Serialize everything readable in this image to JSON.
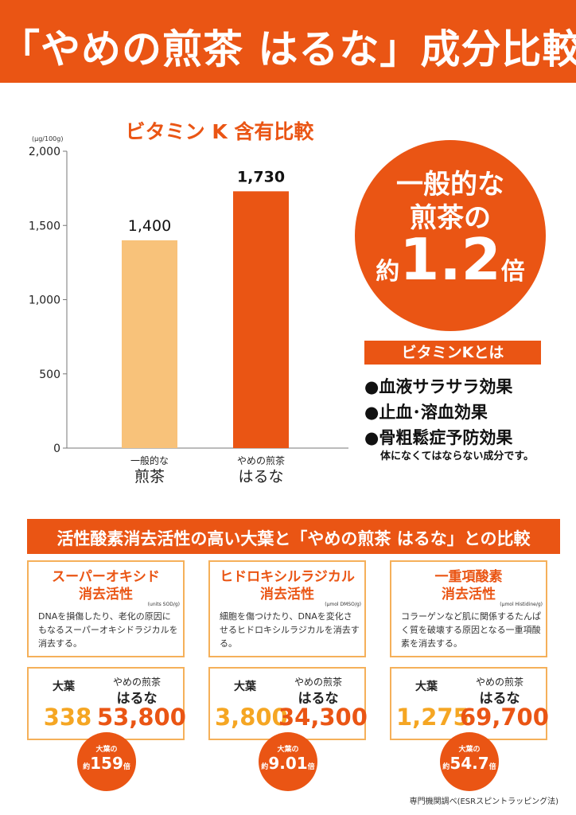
{
  "header": {
    "title": "「やめの煎茶 はるな」成分比較"
  },
  "chart_data": {
    "type": "bar",
    "title": "ビタミン K 含有比較",
    "unit": "(μg/100g)",
    "categories": [
      "一般的な 煎茶",
      "やめの煎茶 はるな"
    ],
    "category_small": [
      "一般的な",
      "やめの煎茶"
    ],
    "category_large": [
      "煎茶",
      "はるな"
    ],
    "values": [
      1400,
      1730
    ],
    "value_labels": [
      "1,400",
      "1,730"
    ],
    "colors": [
      "#f8c27a",
      "#ea5514"
    ],
    "ylim": [
      0,
      2000
    ],
    "ticks": [
      0,
      500,
      1000,
      1500,
      2000
    ],
    "tick_labels": [
      "0",
      "500",
      "1,000",
      "1,500",
      "2,000"
    ],
    "grid": false
  },
  "bubble": {
    "line1": "一般的な",
    "line2": "煎茶の",
    "prefix": "約",
    "ratio": "1.2",
    "suffix": "倍"
  },
  "vitamin_k": {
    "label": "ビタミンKとは",
    "benefits": [
      "●血液サラサラ効果",
      "●止血･溶血効果",
      "●骨粗鬆症予防効果"
    ],
    "note": "体になくてはならない成分です。"
  },
  "section": {
    "title": "活性酸素消去活性の高い大葉と「やめの煎茶 はるな」との比較"
  },
  "comparisons": [
    {
      "name1": "スーパーオキシド",
      "name2": "消去活性",
      "unit": "(units SOD/g)",
      "desc": "DNAを損傷したり、老化の原因にもなるスーパーオキシドラジカルを消去する。",
      "label_left": "大葉",
      "label_right_small": "やめの煎茶",
      "label_right_large": "はるな",
      "value_left": "338",
      "value_right": "53,800",
      "ratio_top": "大葉の",
      "ratio_prefix": "約",
      "ratio_value": "159",
      "ratio_suffix": "倍"
    },
    {
      "name1": "ヒドロキシルラジカル",
      "name2": "消去活性",
      "unit": "(μmol DMSO/g)",
      "desc": "細胞を傷つけたり、DNAを変化させるヒドロキシルラジカルを消去する。",
      "label_left": "大葉",
      "label_right_small": "やめの煎茶",
      "label_right_large": "はるな",
      "value_left": "3,800",
      "value_right": "34,300",
      "ratio_top": "大葉の",
      "ratio_prefix": "約",
      "ratio_value": "9.01",
      "ratio_suffix": "倍"
    },
    {
      "name1": "一重項酸素",
      "name2": "消去活性",
      "unit": "(μmol Histidine/g)",
      "desc": "コラーゲンなど肌に関係するたんぱく質を破壊する原因となる一重項酸素を消去する。",
      "label_left": "大葉",
      "label_right_small": "やめの煎茶",
      "label_right_large": "はるな",
      "value_left": "1,275",
      "value_right": "69,700",
      "ratio_top": "大葉の",
      "ratio_prefix": "約",
      "ratio_value": "54.7",
      "ratio_suffix": "倍"
    }
  ],
  "source": "専門機関調べ(ESRスピントラッピング法)"
}
